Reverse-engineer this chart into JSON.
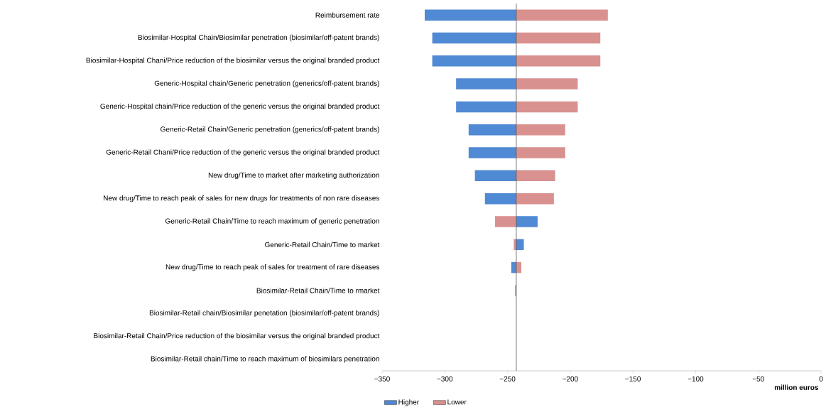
{
  "chart_data": {
    "type": "bar",
    "orientation": "horizontal",
    "xlabel": "million euros",
    "categories": [
      "Reimbursement rate",
      "Biosimilar-Hospital Chain/Biosimilar penetration (biosimilar/off-patent brands)",
      "Biosimilar-Hospital Chani/Price reduction of the biosimilar versus the original branded product",
      "Generic-Hospital chain/Generic penetration (generics/off-patent brands)",
      "Generic-Hospital chain/Price reduction of the generic versus the original branded product",
      "Generic-Retail Chain/Generic penetration (generics/off-patent brands)",
      "Generic-Retail Chani/Price reduction of the generic versus the original branded product",
      "New drug/Time to market after marketing authorization",
      "New drug/Time to reach peak of sales for new drugs for treatments of non rare diseases",
      "Generic-Retail Chain/Time to reach maximum of generic penetration",
      "Generic-Retail Chain/Time to market",
      "New drug/Time to reach peak of sales for treatment of rare diseases",
      "Biosimilar-Retail Chain/Time to rmarket",
      "Biosimilar-Retail chain/Biosimilar penetation (biosimilar/off-patent brands)",
      "Biosimilar-Retail Chain/Price reduction of the biosimilar versus the original branded product",
      "Biosimilar-Retail chain/Time to reach maximum of biosimilars penetration"
    ],
    "series": [
      {
        "name": "Higher",
        "color": "#5089d4",
        "base": [
          -243,
          -243,
          -243,
          -243,
          -243,
          -243,
          -243,
          -243,
          -243,
          -243,
          -243,
          -243,
          null,
          null,
          null,
          null
        ],
        "values": [
          -73,
          -67,
          -67,
          -48,
          -48,
          -38,
          -38,
          -33,
          -25,
          17,
          6,
          -4,
          null,
          null,
          null,
          null
        ]
      },
      {
        "name": "Lower",
        "color": "#d99190",
        "base": [
          -243,
          -243,
          -243,
          -243,
          -243,
          -243,
          -243,
          -243,
          -243,
          -243,
          -243,
          -243,
          -243,
          null,
          null,
          null
        ],
        "values": [
          73,
          67,
          67,
          49,
          49,
          39,
          39,
          31,
          30,
          -17,
          -2,
          4,
          -1,
          null,
          null,
          null
        ]
      }
    ],
    "xlim": [
      -350,
      0
    ],
    "xticks": [
      {
        "value": -350,
        "label": "−350"
      },
      {
        "value": -300,
        "label": "−300"
      },
      {
        "value": -250,
        "label": "−250"
      },
      {
        "value": -200,
        "label": "−200"
      },
      {
        "value": -150,
        "label": "−150"
      },
      {
        "value": -100,
        "label": "−100"
      },
      {
        "value": -50,
        "label": "−50"
      },
      0
    ],
    "ref_lines": [
      {
        "axis": "x",
        "value": -243,
        "color": "#555555"
      }
    ],
    "legend": "bottom",
    "grid": false
  }
}
